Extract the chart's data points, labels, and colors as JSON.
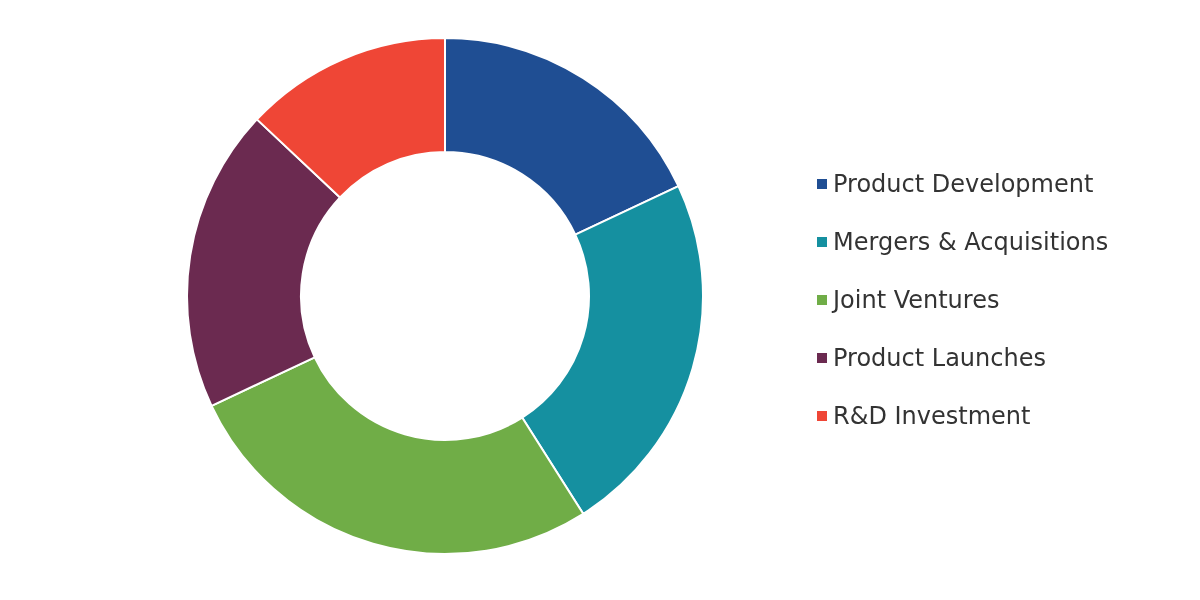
{
  "chart_data": {
    "type": "donut",
    "categories": [
      "Product Development",
      "Mergers & Acquisitions",
      "Joint Ventures",
      "Product Launches",
      "R&D Investment"
    ],
    "values": [
      18,
      23,
      27,
      19,
      13
    ],
    "colors": [
      "#1f4e93",
      "#1590a0",
      "#70ad47",
      "#6b2a50",
      "#ef4636"
    ],
    "legend": "right"
  }
}
